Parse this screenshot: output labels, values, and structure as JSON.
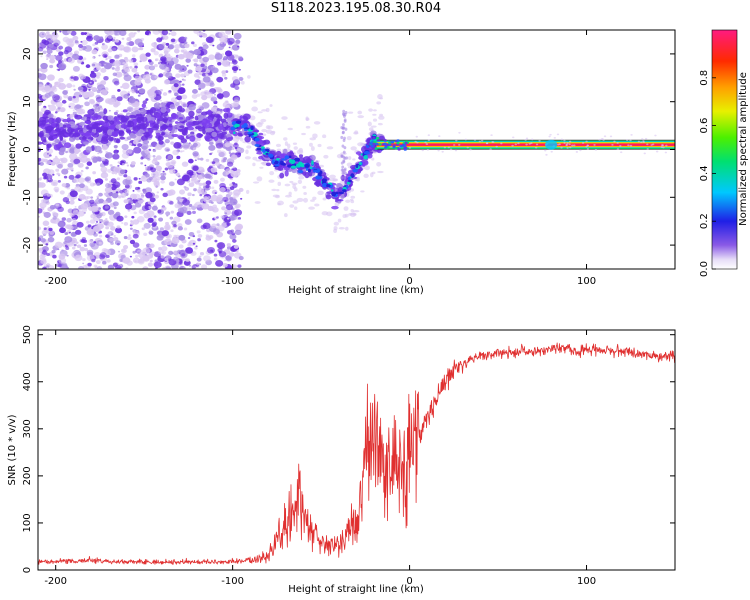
{
  "title": "S118.2023.195.08.30.R04",
  "colors": {
    "snr_line": "#e03030",
    "ridge": "#ff1a60",
    "band_outer": "#404040",
    "speckle_light": "#d9c6f2",
    "speckle_mid": "#a78be6",
    "speckle_dark": "#6a2fe0"
  },
  "chart_data": [
    {
      "type": "heatmap",
      "xlabel": "Height of straight line (km)",
      "ylabel": "Frequency (Hz)",
      "xlim": [
        -210,
        150
      ],
      "ylim": [
        -25,
        25
      ],
      "xticks": [
        -200,
        -100,
        0,
        100
      ],
      "yticks": [
        -20,
        -10,
        0,
        10,
        20
      ],
      "colorbar": {
        "label": "Normalized spectral amplitude",
        "range": [
          0,
          1
        ],
        "ticks": [
          0.0,
          0.2,
          0.4,
          0.6,
          0.8
        ],
        "tick_labels": [
          "0.0",
          "0.2",
          "0.4",
          "0.6",
          "0.8"
        ],
        "colormap": "rainbow (white-violet-blue-cyan-green-yellow-orange-red-magenta)"
      },
      "dominant_frequency_track": {
        "x": [
          -200,
          -180,
          -160,
          -140,
          -120,
          -100,
          -95,
          -90,
          -85,
          -80,
          -75,
          -70,
          -65,
          -60,
          -55,
          -50,
          -45,
          -42,
          -40,
          -38,
          -35,
          -30,
          -25,
          -20,
          -15,
          -10,
          -5,
          0,
          20,
          50,
          80,
          100,
          150
        ],
        "y": [
          4,
          4,
          5,
          6,
          5,
          5,
          5,
          4,
          1,
          -1,
          -3,
          -2,
          -3,
          -4,
          -3,
          -6,
          -8,
          -9,
          -9.5,
          -9,
          -7,
          -4,
          -1,
          2,
          1,
          1,
          1,
          1,
          1,
          1,
          1,
          1,
          1
        ]
      }
    },
    {
      "type": "line",
      "xlabel": "Height of straight line (km)",
      "ylabel": "SNR (10 * v/v)",
      "xlim": [
        -210,
        150
      ],
      "ylim": [
        0,
        510
      ],
      "xticks": [
        -200,
        -100,
        0,
        100
      ],
      "yticks": [
        0,
        100,
        200,
        300,
        400,
        500
      ],
      "series": [
        {
          "x": [
            -210,
            -180,
            -150,
            -120,
            -100,
            -90,
            -80,
            -75,
            -70,
            -65,
            -62,
            -60,
            -55,
            -50,
            -45,
            -40,
            -35,
            -30,
            -28,
            -25,
            -22,
            -20,
            -18,
            -15,
            -12,
            -10,
            -5,
            0,
            5,
            10,
            15,
            20,
            25,
            30,
            40,
            50,
            60,
            70,
            80,
            90,
            95,
            100,
            110,
            120,
            130,
            140,
            150
          ],
          "y": [
            15,
            18,
            15,
            15,
            15,
            18,
            30,
            60,
            90,
            130,
            170,
            110,
            80,
            60,
            55,
            55,
            80,
            100,
            140,
            220,
            280,
            300,
            280,
            250,
            230,
            220,
            230,
            250,
            280,
            320,
            360,
            400,
            425,
            440,
            455,
            460,
            465,
            465,
            470,
            470,
            460,
            470,
            465,
            465,
            460,
            455,
            455
          ]
        }
      ]
    }
  ]
}
